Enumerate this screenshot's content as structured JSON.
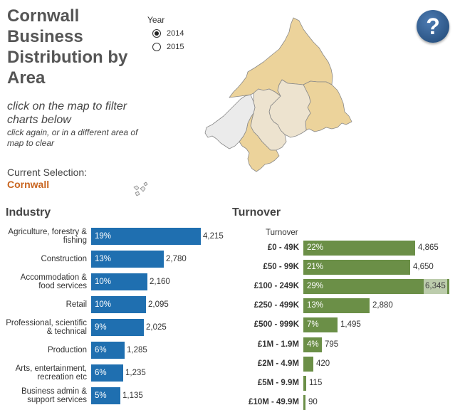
{
  "header": {
    "title": "Cornwall Business Distribution by Area",
    "instruction_main": "click on the map to filter charts below",
    "instruction_sub": "click again, or in a different area of map to clear",
    "current_selection_label": "Current Selection:",
    "current_selection_value": "Cornwall"
  },
  "year_filter": {
    "title": "Year",
    "options": [
      {
        "label": "2014",
        "selected": true
      },
      {
        "label": "2015",
        "selected": false
      }
    ]
  },
  "help_button": {
    "label": "?",
    "icon": "help-icon"
  },
  "map": {
    "icon": "cornwall-area-map",
    "area_colors": [
      "#ecd39b",
      "#ede3cf",
      "#ebebeb"
    ]
  },
  "industry": {
    "title": "Industry",
    "bar_color": "#1f6fb0",
    "rows": [
      {
        "label": "Agriculture, forestry & fishing",
        "pct": "19%",
        "value": 4215,
        "value_label": "4,215"
      },
      {
        "label": "Construction",
        "pct": "13%",
        "value": 2780,
        "value_label": "2,780"
      },
      {
        "label": "Accommodation & food services",
        "pct": "10%",
        "value": 2160,
        "value_label": "2,160"
      },
      {
        "label": "Retail",
        "pct": "10%",
        "value": 2095,
        "value_label": "2,095"
      },
      {
        "label": "Professional, scientific & technical",
        "pct": "9%",
        "value": 2025,
        "value_label": "2,025"
      },
      {
        "label": "Production",
        "pct": "6%",
        "value": 1285,
        "value_label": "1,285"
      },
      {
        "label": "Arts, entertainment, recreation etc",
        "pct": "6%",
        "value": 1235,
        "value_label": "1,235"
      },
      {
        "label": "Business admin & support services",
        "pct": "5%",
        "value": 1135,
        "value_label": "1,135"
      }
    ]
  },
  "turnover": {
    "title": "Turnover",
    "column_header": "Turnover",
    "bar_color": "#6b8f47",
    "rows": [
      {
        "label": "£0 - 49K",
        "pct": "22%",
        "value": 4865,
        "value_label": "4,865"
      },
      {
        "label": "£50 - 99K",
        "pct": "21%",
        "value": 4650,
        "value_label": "4,650"
      },
      {
        "label": "£100 - 249K",
        "pct": "29%",
        "value": 6345,
        "value_label": "6,345"
      },
      {
        "label": "£250 - 499K",
        "pct": "13%",
        "value": 2880,
        "value_label": "2,880"
      },
      {
        "label": "£500 - 999K",
        "pct": "7%",
        "value": 1495,
        "value_label": "1,495"
      },
      {
        "label": "£1M - 1.9M",
        "pct": "4%",
        "value": 795,
        "value_label": "795"
      },
      {
        "label": "£2M - 4.9M",
        "pct": "",
        "value": 420,
        "value_label": "420"
      },
      {
        "label": "£5M - 9.9M",
        "pct": "",
        "value": 115,
        "value_label": "115"
      },
      {
        "label": "£10M - 49.9M",
        "pct": "",
        "value": 90,
        "value_label": "90"
      }
    ]
  }
}
